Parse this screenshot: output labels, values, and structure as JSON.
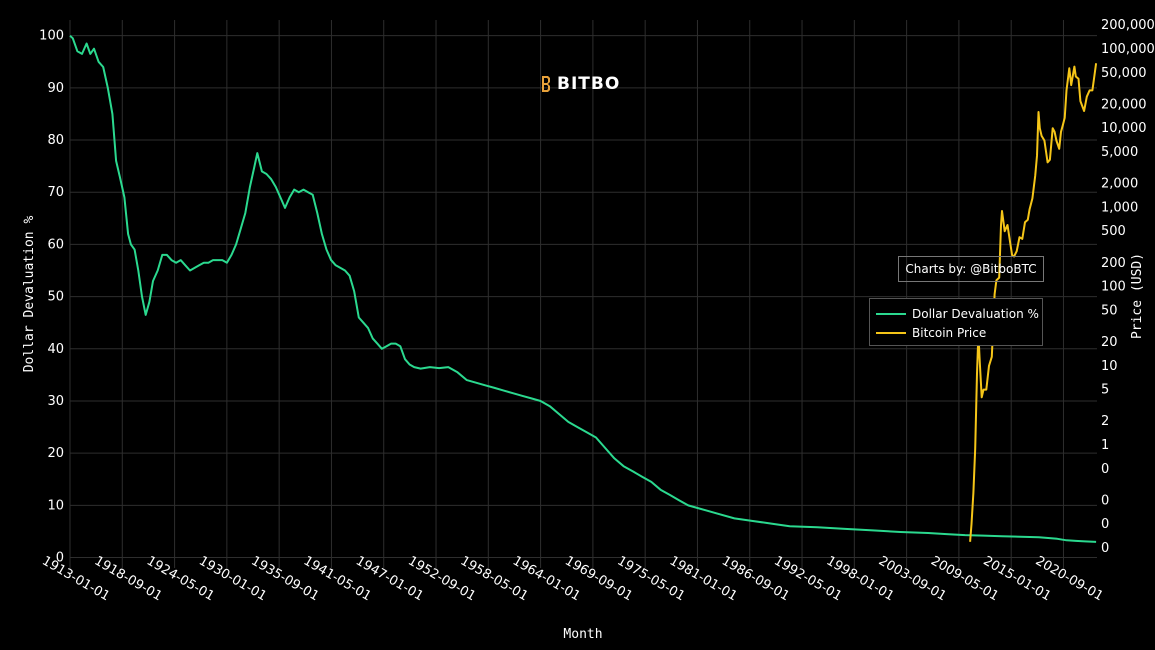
{
  "logo": {
    "text": "BITBO"
  },
  "credit": {
    "text": "Charts by: @BitboBTC"
  },
  "chart_data": {
    "type": "line",
    "xlabel": "Month",
    "ylabel_left": "Dollar Devaluation %",
    "ylabel_right": "Price (USD)",
    "x_ticks": [
      "1913-01-01",
      "1918-09-01",
      "1924-05-01",
      "1930-01-01",
      "1935-09-01",
      "1941-05-01",
      "1947-01-01",
      "1952-09-01",
      "1958-05-01",
      "1964-01-01",
      "1969-09-01",
      "1975-05-01",
      "1981-01-01",
      "1986-09-01",
      "1992-05-01",
      "1998-01-01",
      "2003-09-01",
      "2009-05-01",
      "2015-01-01",
      "2020-09-01"
    ],
    "x_range": [
      1913.0,
      2024.3
    ],
    "y_left_ticks": [
      0,
      10,
      20,
      30,
      40,
      50,
      60,
      70,
      80,
      90,
      100
    ],
    "y_left_range": [
      -2,
      103
    ],
    "y_right_scale": "log",
    "y_right_tick_labels": [
      "200,000",
      "100,000",
      "50,000",
      "20,000",
      "10,000",
      "5,000",
      "2,000",
      "1,000",
      "500",
      "200",
      "100",
      "50",
      "20",
      "10",
      "5",
      "2",
      "1",
      "0",
      "0",
      "0",
      "0"
    ],
    "legend_position": "right",
    "grid": true,
    "colors": {
      "devaluation": "#2bd98f",
      "bitcoin": "#f5c518",
      "grid": "#2e2e2e"
    },
    "series": [
      {
        "name": "Dollar Devaluation %",
        "axis": "left",
        "x": [
          1913.0,
          1913.3,
          1913.8,
          1914.3,
          1914.8,
          1915.2,
          1915.6,
          1916.1,
          1916.6,
          1917.1,
          1917.6,
          1918.0,
          1918.4,
          1918.9,
          1919.3,
          1919.6,
          1920.0,
          1920.4,
          1920.8,
          1921.2,
          1921.6,
          1922.0,
          1922.5,
          1923.0,
          1923.5,
          1924.0,
          1924.5,
          1925.0,
          1925.5,
          1926.0,
          1926.5,
          1927.0,
          1927.5,
          1928.0,
          1928.5,
          1929.0,
          1929.5,
          1930.0,
          1930.5,
          1931.0,
          1931.5,
          1932.0,
          1932.5,
          1933.0,
          1933.3,
          1933.8,
          1934.3,
          1934.8,
          1935.3,
          1935.8,
          1936.3,
          1936.8,
          1937.3,
          1937.8,
          1938.3,
          1938.8,
          1939.3,
          1939.8,
          1940.3,
          1940.8,
          1941.3,
          1941.8,
          1942.3,
          1942.8,
          1943.3,
          1943.8,
          1944.3,
          1944.8,
          1945.3,
          1945.8,
          1946.3,
          1946.8,
          1947.3,
          1947.8,
          1948.3,
          1948.8,
          1949.3,
          1949.8,
          1950.3,
          1951.0,
          1952.0,
          1953.0,
          1954.0,
          1955.0,
          1956.0,
          1957.0,
          1958.0,
          1959.0,
          1960.0,
          1961.0,
          1962.0,
          1963.0,
          1964.0,
          1965.0,
          1966.0,
          1967.0,
          1968.0,
          1969.0,
          1970.0,
          1971.0,
          1972.0,
          1973.0,
          1974.0,
          1975.0,
          1976.0,
          1977.0,
          1978.0,
          1979.0,
          1980.0,
          1981.0,
          1982.0,
          1983.0,
          1985.0,
          1987.0,
          1989.0,
          1991.0,
          1994.0,
          1997.0,
          2000.0,
          2003.0,
          2006.0,
          2008.0,
          2010.0,
          2012.0,
          2014.0,
          2016.0,
          2018.0,
          2020.0,
          2021.0,
          2022.0,
          2023.0,
          2024.2
        ],
        "y": [
          100,
          99.5,
          97,
          96.5,
          98.5,
          96.5,
          97.5,
          95,
          94,
          90,
          85,
          76,
          73,
          69,
          62,
          60,
          59,
          55,
          50,
          46.5,
          49,
          53,
          55,
          58,
          58,
          57,
          56.5,
          57,
          56,
          55,
          55.5,
          56,
          56.5,
          56.5,
          57,
          57,
          57,
          56.5,
          58,
          60,
          63,
          66,
          71,
          75,
          77.5,
          74,
          73.5,
          72.5,
          71,
          69,
          67,
          69,
          70.5,
          70,
          70.5,
          70,
          69.5,
          66,
          62,
          59,
          57,
          56,
          55.5,
          55,
          54,
          51,
          46,
          45,
          44,
          42,
          41,
          40,
          40.5,
          41,
          41,
          40.5,
          38,
          37,
          36.5,
          36.2,
          36.5,
          36.3,
          36.5,
          35.5,
          34,
          33.5,
          33,
          32.5,
          32,
          31.5,
          31,
          30.5,
          30,
          29,
          27.5,
          26,
          25,
          24,
          23,
          21,
          19,
          17.5,
          16.5,
          15.5,
          14.5,
          13,
          12,
          11,
          10,
          9.5,
          9,
          8.5,
          7.5,
          7,
          6.5,
          6,
          5.8,
          5.5,
          5.2,
          4.9,
          4.7,
          4.5,
          4.3,
          4.2,
          4.1,
          4,
          3.9,
          3.6,
          3.3,
          3.2,
          3.1,
          3.0
        ]
      },
      {
        "name": "Bitcoin Price",
        "axis": "right",
        "x": [
          2010.55,
          2010.7,
          2010.9,
          2011.1,
          2011.3,
          2011.45,
          2011.6,
          2011.8,
          2012.0,
          2012.3,
          2012.6,
          2012.9,
          2013.2,
          2013.4,
          2013.7,
          2013.9,
          2014.0,
          2014.3,
          2014.6,
          2014.9,
          2015.1,
          2015.3,
          2015.6,
          2015.9,
          2016.2,
          2016.5,
          2016.8,
          2017.0,
          2017.3,
          2017.6,
          2017.8,
          2017.96,
          2018.1,
          2018.3,
          2018.6,
          2018.95,
          2019.2,
          2019.5,
          2019.7,
          2019.9,
          2020.2,
          2020.4,
          2020.6,
          2020.8,
          2021.0,
          2021.3,
          2021.5,
          2021.85,
          2022.0,
          2022.3,
          2022.5,
          2022.9,
          2023.2,
          2023.5,
          2023.8,
          2024.0,
          2024.2
        ],
        "y": [
          0.06,
          0.1,
          0.25,
          0.9,
          8,
          25,
          11,
          4,
          5,
          5,
          10,
          13,
          80,
          120,
          130,
          600,
          900,
          500,
          600,
          350,
          250,
          240,
          280,
          420,
          400,
          650,
          700,
          950,
          1300,
          2500,
          4500,
          16000,
          10000,
          8000,
          7000,
          3700,
          4000,
          10000,
          9000,
          7000,
          5500,
          9000,
          11000,
          13500,
          30000,
          57000,
          35000,
          60000,
          45000,
          42000,
          22000,
          16500,
          25000,
          30000,
          30000,
          44000,
          66000
        ]
      }
    ]
  }
}
